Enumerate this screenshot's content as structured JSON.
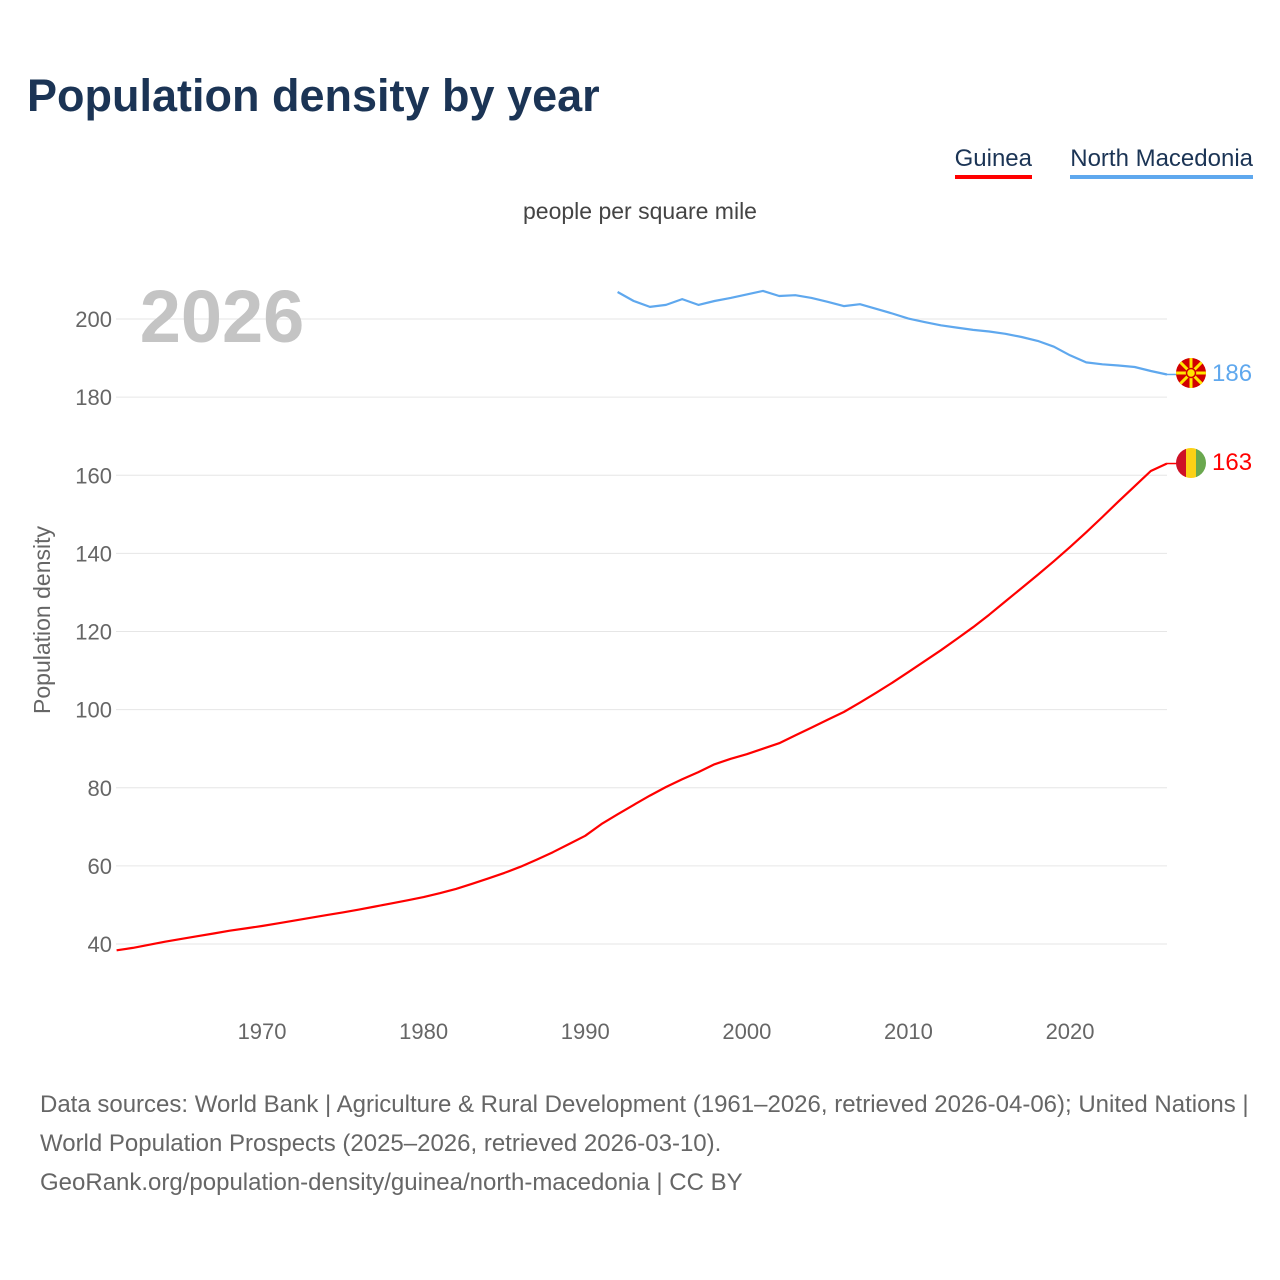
{
  "title": "Population density by year",
  "legend": [
    {
      "label": "Guinea",
      "color": "#ff0000"
    },
    {
      "label": "North Macedonia",
      "color": "#5fa8ee"
    }
  ],
  "subtitle": "people per square mile",
  "footer": {
    "line1": "Data sources: World Bank | Agriculture & Rural Development (1961–2026, retrieved 2026-04-06); United Nations | World Population Prospects (2025–2026, retrieved 2026-03-10).",
    "line2": "GeoRank.org/population-density/guinea/north-macedonia | CC BY"
  },
  "chart_data": {
    "type": "line",
    "title": "Population density by year",
    "ylabel": "Population density",
    "xlabel": "",
    "year_label": "2026",
    "xlim": [
      1961,
      2026
    ],
    "ylim": [
      30,
      212
    ],
    "xticks": [
      1970,
      1980,
      1990,
      2000,
      2010,
      2020
    ],
    "yticks": [
      40,
      60,
      80,
      100,
      120,
      140,
      160,
      180,
      200
    ],
    "grid": true,
    "series": [
      {
        "name": "Guinea",
        "color": "#ff0000",
        "end_label": "163",
        "flag": "guinea",
        "x": [
          1961,
          1962,
          1963,
          1964,
          1965,
          1966,
          1967,
          1968,
          1969,
          1970,
          1971,
          1972,
          1973,
          1974,
          1975,
          1976,
          1977,
          1978,
          1979,
          1980,
          1981,
          1982,
          1983,
          1984,
          1985,
          1986,
          1987,
          1988,
          1989,
          1990,
          1991,
          1992,
          1993,
          1994,
          1995,
          1996,
          1997,
          1998,
          1999,
          2000,
          2001,
          2002,
          2003,
          2004,
          2005,
          2006,
          2007,
          2008,
          2009,
          2010,
          2011,
          2012,
          2013,
          2014,
          2015,
          2016,
          2017,
          2018,
          2019,
          2020,
          2021,
          2022,
          2023,
          2024,
          2025,
          2026
        ],
        "values": [
          38.4,
          39.0,
          39.8,
          40.6,
          41.3,
          42.0,
          42.7,
          43.4,
          44.0,
          44.6,
          45.3,
          46.0,
          46.7,
          47.4,
          48.1,
          48.8,
          49.6,
          50.4,
          51.2,
          52.0,
          53.0,
          54.1,
          55.4,
          56.8,
          58.2,
          59.8,
          61.6,
          63.5,
          65.6,
          67.7,
          70.7,
          73.2,
          75.6,
          78.0,
          80.2,
          82.2,
          84.0,
          86.0,
          87.4,
          88.6,
          90.0,
          91.4,
          93.4,
          95.4,
          97.4,
          99.4,
          101.8,
          104.3,
          106.9,
          109.6,
          112.4,
          115.2,
          118.1,
          121.1,
          124.3,
          127.7,
          131.1,
          134.5,
          138.0,
          141.6,
          145.4,
          149.3,
          153.3,
          157.2,
          161.1,
          163.0
        ]
      },
      {
        "name": "North Macedonia",
        "color": "#5fa8ee",
        "end_label": "186",
        "flag": "north-macedonia",
        "x": [
          1992,
          1993,
          1994,
          1995,
          1996,
          1997,
          1998,
          1999,
          2000,
          2001,
          2002,
          2003,
          2004,
          2005,
          2006,
          2007,
          2008,
          2009,
          2010,
          2011,
          2012,
          2013,
          2014,
          2015,
          2016,
          2017,
          2018,
          2019,
          2020,
          2021,
          2022,
          2023,
          2024,
          2025,
          2026
        ],
        "values": [
          206.9,
          204.6,
          203.1,
          203.6,
          205.1,
          203.6,
          204.6,
          205.4,
          206.3,
          207.2,
          205.9,
          206.1,
          205.4,
          204.4,
          203.3,
          203.8,
          202.6,
          201.4,
          200.1,
          199.2,
          198.4,
          197.8,
          197.2,
          196.8,
          196.2,
          195.4,
          194.4,
          192.9,
          190.7,
          188.9,
          188.4,
          188.1,
          187.7,
          186.7,
          185.8
        ]
      }
    ]
  }
}
